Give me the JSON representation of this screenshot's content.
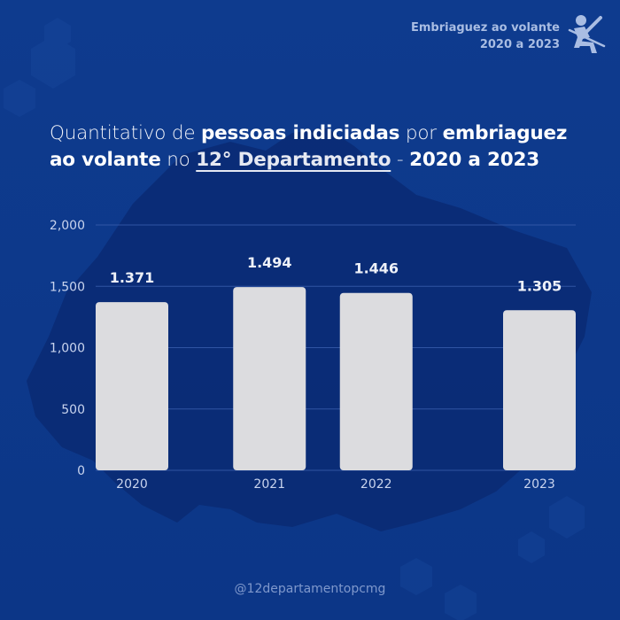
{
  "header": {
    "tag_line1": "Embriaguez ao volante",
    "tag_line2": "2020 a 2023",
    "icon": "drunk-driver-seatbelt-icon"
  },
  "title": {
    "part1": "Quantitativo de ",
    "part2": "pessoas indiciadas",
    "part3": " por ",
    "part4": "embriaguez ao volante",
    "part5": " no ",
    "part6": "12° Departamento",
    "part7": " - ",
    "part8": "2020 a 2023"
  },
  "footer": {
    "handle": "@12departamentopcmg"
  },
  "colors": {
    "background": "#0d3a8c",
    "bar": "#dcdcdf",
    "text": "#ffffff",
    "axis_text": "#c9d4ee"
  },
  "chart_data": {
    "type": "bar",
    "title": "Quantitativo de pessoas indiciadas por embriaguez ao volante no 12° Departamento - 2020 a 2023",
    "categories": [
      "2020",
      "2021",
      "2022",
      "2023"
    ],
    "values": [
      1371,
      1494,
      1446,
      1305
    ],
    "data_labels": [
      "1.371",
      "1.494",
      "1.446",
      "1.305"
    ],
    "xlabel": "",
    "ylabel": "",
    "ylim": [
      0,
      2000
    ],
    "yticks": [
      0,
      500,
      1000,
      1500,
      2000
    ],
    "ytick_labels": [
      "0",
      "500",
      "1,000",
      "1,500",
      "2,000"
    ],
    "grid": true,
    "legend": "none"
  }
}
